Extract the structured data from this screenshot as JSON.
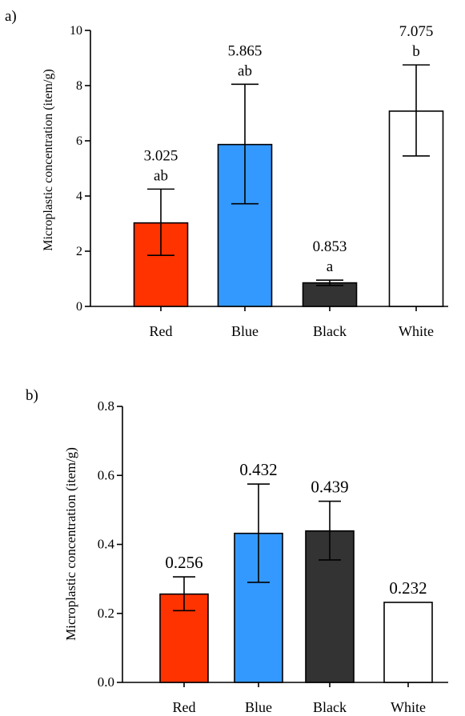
{
  "chart_data": [
    {
      "type": "bar",
      "panel_label": "a)",
      "ylabel": "Microplastic concentration (item/g)",
      "xlabel": "",
      "ylim": [
        0,
        10
      ],
      "yticks": [
        0,
        2,
        4,
        6,
        8,
        10
      ],
      "categories": [
        "Red",
        "Blue",
        "Black",
        "White"
      ],
      "values": [
        3.025,
        5.865,
        0.853,
        7.075
      ],
      "error_low": [
        1.85,
        3.72,
        0.76,
        5.45
      ],
      "error_high": [
        4.25,
        8.05,
        0.95,
        8.75
      ],
      "value_labels": [
        "3.025",
        "5.865",
        "0.853",
        "7.075"
      ],
      "group_letters": [
        "ab",
        "ab",
        "a",
        "b"
      ],
      "colors": [
        "#ff3300",
        "#3399ff",
        "#333333",
        "#ffffff"
      ],
      "grid": false
    },
    {
      "type": "bar",
      "panel_label": "b)",
      "ylabel": "Microplastic concentration (item/g)",
      "xlabel": "",
      "ylim": [
        0,
        0.8
      ],
      "yticks": [
        0.0,
        0.2,
        0.4,
        0.6,
        0.8
      ],
      "ytick_labels": [
        "0.0",
        "0.2",
        "0.4",
        "0.6",
        "0.8"
      ],
      "categories": [
        "Red",
        "Blue",
        "Black",
        "White"
      ],
      "values": [
        0.256,
        0.432,
        0.439,
        0.232
      ],
      "error_low": [
        0.208,
        0.29,
        0.355,
        null
      ],
      "error_high": [
        0.306,
        0.575,
        0.525,
        null
      ],
      "value_labels": [
        "0.256",
        "0.432",
        "0.439",
        "0.232"
      ],
      "colors": [
        "#ff3300",
        "#3399ff",
        "#333333",
        "#ffffff"
      ],
      "grid": false
    }
  ]
}
